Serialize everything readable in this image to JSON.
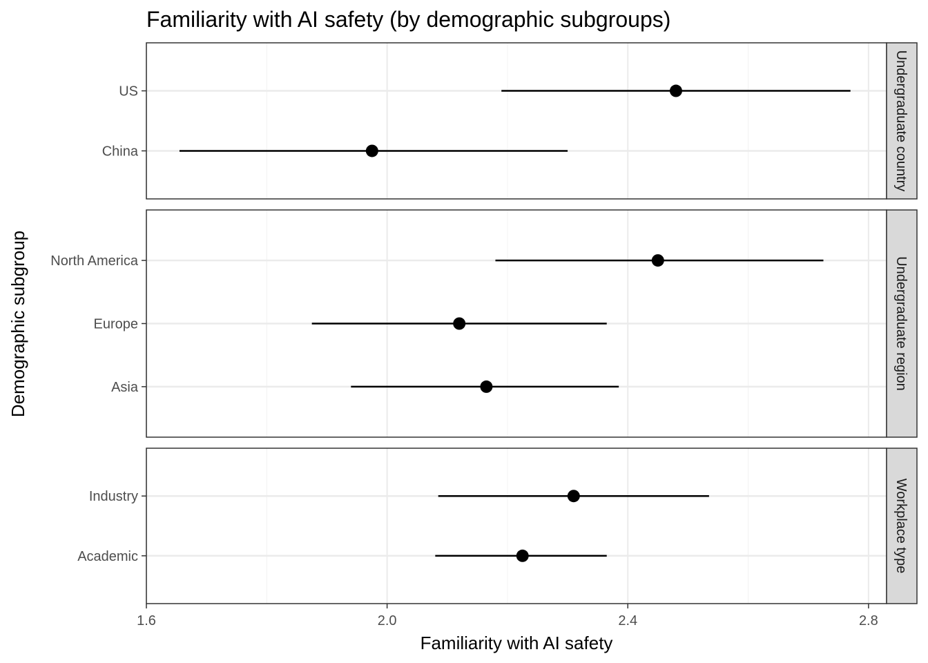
{
  "chart_data": {
    "type": "scatter",
    "title": "Familiarity with AI safety (by demographic subgroups)",
    "xlabel": "Familiarity with AI safety",
    "ylabel": "Demographic subgroup",
    "xlim": [
      1.6,
      2.83
    ],
    "x_ticks": [
      "1.6",
      "2.0",
      "2.4",
      "2.8"
    ],
    "grid": true,
    "facets": [
      {
        "label": "Undergraduate country",
        "points": [
          {
            "category": "US",
            "estimate": 2.48,
            "lower": 2.19,
            "upper": 2.77
          },
          {
            "category": "China",
            "estimate": 1.975,
            "lower": 1.655,
            "upper": 2.3
          }
        ]
      },
      {
        "label": "Undergraduate region",
        "points": [
          {
            "category": "North America",
            "estimate": 2.45,
            "lower": 2.18,
            "upper": 2.725
          },
          {
            "category": "Europe",
            "estimate": 2.12,
            "lower": 1.875,
            "upper": 2.365
          },
          {
            "category": "Asia",
            "estimate": 2.165,
            "lower": 1.94,
            "upper": 2.385
          }
        ]
      },
      {
        "label": "Workplace type",
        "points": [
          {
            "category": "Industry",
            "estimate": 2.31,
            "lower": 2.085,
            "upper": 2.535
          },
          {
            "category": "Academic",
            "estimate": 2.225,
            "lower": 2.08,
            "upper": 2.365
          }
        ]
      }
    ]
  }
}
